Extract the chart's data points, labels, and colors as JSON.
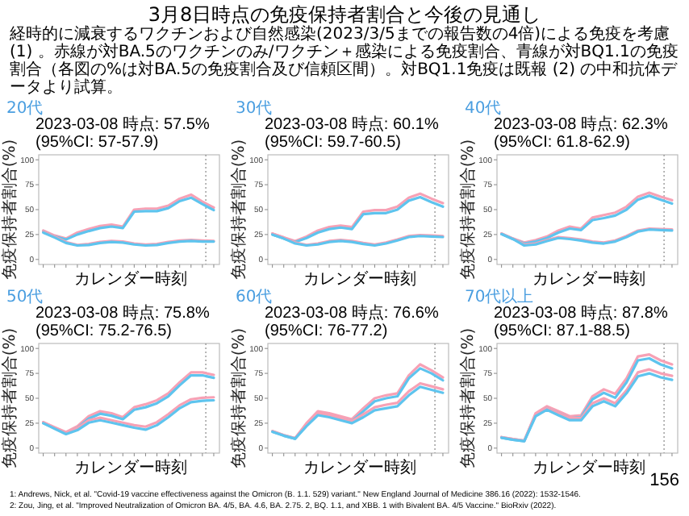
{
  "chart_data": [
    {
      "type": "other",
      "title": "3月8日時点の免疫保持者割合と今後の見通し",
      "subtitle": "経時的に減衰するワクチンおよび自然感染(2023/3/5までの報告数の4倍)による免疫を考慮 (1) 。赤線が対BA.5のワクチンのみ/ワクチン＋感染による免疫割合、青線が対BQ1.1の免疫割合（各図の%は対BA.5の免疫割合及び信頼区間）。対BQ1.1免疫は既報 (2) の中和抗体データより試算。",
      "annotations": [
        "1: Andrews, Nick, et al. \"Covid-19 vaccine effectiveness against the Omicron (B. 1.1. 529) variant.\" New England Journal of Medicine 386.16 (2022): 1532-1546.",
        "2: Zou, Jing, et al. \"Improved Neutralization of Omicron BA. 4/5, BA. 4.6, BA. 2.75. 2, BQ. 1.1, and XBB. 1 with Bivalent BA. 4/5 Vaccine.\" BioRxiv (2022).",
        "156"
      ]
    },
    {
      "type": "line",
      "title": "20代",
      "subtitle": "2023-03-08 時点: 57.5% (95%CI: 57-57.9)",
      "xlabel": "カレンダー時刻",
      "ylabel": "免疫保持者割合(%)",
      "ylim": [
        -5,
        105
      ],
      "yticks": [
        0,
        25,
        50,
        75,
        100
      ],
      "categories": [
        null,
        null,
        null,
        null,
        null,
        null,
        null,
        null,
        null,
        null,
        null,
        null,
        null,
        null,
        null,
        null
      ],
      "series": [
        {
          "color": "#f7a1b5",
          "values": [
            29,
            24,
            21,
            27,
            30.5,
            33.5,
            35,
            33,
            50,
            51,
            51,
            54,
            61,
            65,
            58,
            52
          ]
        },
        {
          "color": "#5ec4ee",
          "values": [
            28,
            23,
            20,
            25,
            28.5,
            31.5,
            33,
            31.5,
            48,
            48.5,
            48.5,
            51.5,
            58.5,
            62,
            55.5,
            49.5
          ]
        },
        {
          "color": "#f7a1b5",
          "values": [
            28,
            23,
            17.5,
            14.5,
            15.5,
            17.5,
            18.5,
            18,
            16,
            15,
            15.5,
            17.5,
            19,
            19.5,
            19,
            18.5
          ]
        },
        {
          "color": "#5ec4ee",
          "values": [
            27,
            22,
            16.5,
            14,
            14.5,
            16.5,
            17.5,
            17,
            15,
            14,
            14.5,
            16.5,
            18,
            18.5,
            18,
            18
          ]
        }
      ]
    },
    {
      "type": "line",
      "title": "30代",
      "subtitle": "2023-03-08 時点: 60.1% (95%CI: 59.7-60.5)",
      "xlabel": "カレンダー時刻",
      "ylabel": "免疫保持者割合(%)",
      "ylim": [
        -5,
        105
      ],
      "yticks": [
        0,
        25,
        50,
        75,
        100
      ],
      "categories": [
        null,
        null,
        null,
        null,
        null,
        null,
        null,
        null,
        null,
        null,
        null,
        null,
        null,
        null,
        null,
        null
      ],
      "series": [
        {
          "color": "#f7a1b5",
          "values": [
            26,
            22,
            18.5,
            23,
            29,
            32.5,
            34,
            32.5,
            48,
            49.5,
            49.5,
            53,
            62,
            66,
            61,
            56.5
          ]
        },
        {
          "color": "#5ec4ee",
          "values": [
            25,
            21,
            17.5,
            21.5,
            27,
            30.5,
            32,
            30.5,
            45.5,
            46.5,
            46.5,
            50,
            59,
            62.5,
            57.5,
            53
          ]
        },
        {
          "color": "#f7a1b5",
          "values": [
            26,
            22,
            17,
            14.5,
            16,
            18.5,
            19.5,
            18.5,
            16.5,
            15,
            17,
            20,
            23.5,
            24.5,
            24,
            23.5
          ]
        },
        {
          "color": "#5ec4ee",
          "values": [
            25,
            21,
            16,
            14,
            15,
            17.5,
            18.5,
            17.5,
            15.5,
            14,
            16,
            19,
            22.5,
            23.5,
            23,
            22.5
          ]
        }
      ]
    },
    {
      "type": "line",
      "title": "40代",
      "subtitle": "2023-03-08 時点: 62.3% (95%CI: 61.8-62.9)",
      "xlabel": "カレンダー時刻",
      "ylabel": "免疫保持者割合(%)",
      "ylim": [
        -5,
        105
      ],
      "yticks": [
        0,
        25,
        50,
        75,
        100
      ],
      "categories": [
        null,
        null,
        null,
        null,
        null,
        null,
        null,
        null,
        null,
        null,
        null,
        null,
        null,
        null,
        null,
        null
      ],
      "series": [
        {
          "color": "#f7a1b5",
          "values": [
            26,
            21,
            17,
            19.5,
            23,
            29,
            33,
            31,
            42,
            44.5,
            47,
            53,
            63,
            67,
            63,
            59.5
          ]
        },
        {
          "color": "#5ec4ee",
          "values": [
            25.5,
            20.5,
            16,
            18,
            21.5,
            27,
            31,
            29.5,
            39.5,
            41.5,
            44,
            50,
            60,
            64,
            60,
            56
          ]
        },
        {
          "color": "#f7a1b5",
          "values": [
            26,
            21,
            15,
            16,
            19.5,
            22.5,
            21.5,
            20,
            18,
            17,
            19,
            23.5,
            29,
            31,
            30.5,
            30
          ]
        },
        {
          "color": "#5ec4ee",
          "values": [
            25.5,
            20.5,
            14,
            15,
            18.5,
            21.5,
            20.5,
            19,
            17,
            16,
            18,
            22.5,
            28,
            30,
            29.5,
            29
          ]
        }
      ]
    },
    {
      "type": "line",
      "title": "50代",
      "subtitle": "2023-03-08 時点: 75.8% (95%CI: 75.2-76.5)",
      "xlabel": "カレンダー時刻",
      "ylabel": "免疫保持者割合(%)",
      "ylim": [
        -5,
        105
      ],
      "yticks": [
        0,
        25,
        50,
        75,
        100
      ],
      "categories": [
        null,
        null,
        null,
        null,
        null,
        null,
        null,
        null,
        null,
        null,
        null,
        null,
        null,
        null,
        null,
        null
      ],
      "series": [
        {
          "color": "#f7a1b5",
          "values": [
            26,
            21,
            16,
            22,
            32,
            37,
            35,
            31,
            41,
            44,
            48,
            55,
            66,
            76,
            76,
            73.5
          ]
        },
        {
          "color": "#5ec4ee",
          "values": [
            25,
            20,
            14.5,
            20,
            29.5,
            34.5,
            32.5,
            29,
            38.5,
            41,
            45,
            52,
            63,
            73,
            73,
            70.5
          ]
        },
        {
          "color": "#f7a1b5",
          "values": [
            26,
            20.5,
            15,
            20,
            28,
            30.5,
            28,
            25.5,
            23,
            21.5,
            26,
            34,
            43,
            49,
            50.5,
            51
          ]
        },
        {
          "color": "#5ec4ee",
          "values": [
            25,
            19.5,
            14,
            18,
            25.5,
            28,
            25.5,
            23,
            20.5,
            18.5,
            23,
            31,
            40,
            46,
            47.5,
            48
          ]
        }
      ]
    },
    {
      "type": "line",
      "title": "60代",
      "subtitle": "2023-03-08 時点: 76.6% (95%CI: 76-77.2)",
      "xlabel": "カレンダー時刻",
      "ylabel": "免疫保持者割合(%)",
      "ylim": [
        -5,
        105
      ],
      "yticks": [
        0,
        25,
        50,
        75,
        100
      ],
      "categories": [
        null,
        null,
        null,
        null,
        null,
        null,
        null,
        null,
        null,
        null,
        null,
        null,
        null,
        null,
        null,
        null
      ],
      "series": [
        {
          "color": "#f7a1b5",
          "values": [
            17,
            13,
            10,
            25,
            37,
            35,
            32,
            29,
            40,
            50,
            53,
            55,
            73,
            84,
            78,
            71
          ]
        },
        {
          "color": "#5ec4ee",
          "values": [
            16.5,
            12.5,
            9.5,
            23,
            34,
            32.5,
            29.5,
            27,
            37,
            47,
            50,
            52,
            70,
            80,
            75,
            68
          ]
        },
        {
          "color": "#f7a1b5",
          "values": [
            17,
            13,
            10,
            24,
            35,
            33,
            30,
            27,
            34,
            41,
            43.5,
            45.5,
            57,
            65,
            62,
            59
          ]
        },
        {
          "color": "#5ec4ee",
          "values": [
            16.5,
            12.5,
            9.5,
            22,
            33,
            31,
            28,
            25,
            31,
            38,
            40,
            42,
            53,
            61.5,
            58.5,
            55.5
          ]
        }
      ]
    },
    {
      "type": "line",
      "title": "70代以上",
      "subtitle": "2023-03-08 時点: 87.8% (95%CI: 87.1-88.5)",
      "xlabel": "カレンダー時刻",
      "ylabel": "免疫保持者割合(%)",
      "ylim": [
        -5,
        105
      ],
      "yticks": [
        0,
        25,
        50,
        75,
        100
      ],
      "categories": [
        null,
        null,
        null,
        null,
        null,
        null,
        null,
        null,
        null,
        null,
        null,
        null,
        null,
        null,
        null,
        null
      ],
      "series": [
        {
          "color": "#f7a1b5",
          "values": [
            11,
            9,
            7.5,
            35,
            42,
            37,
            32,
            33,
            52,
            59,
            54.5,
            70,
            92,
            94,
            88,
            84
          ]
        },
        {
          "color": "#5ec4ee",
          "values": [
            10.5,
            8.5,
            7,
            33,
            40,
            35,
            30,
            31,
            49,
            55.5,
            50.5,
            66,
            88,
            90,
            84,
            80
          ]
        },
        {
          "color": "#f7a1b5",
          "values": [
            11,
            9,
            7.5,
            34,
            40,
            35,
            30,
            30,
            45,
            50,
            45,
            58,
            76,
            79,
            75,
            72.5
          ]
        },
        {
          "color": "#5ec4ee",
          "values": [
            10.5,
            8.5,
            7,
            32,
            38.5,
            33,
            28,
            28,
            42,
            47,
            42,
            55,
            72,
            75,
            71,
            68.5
          ]
        }
      ]
    }
  ]
}
